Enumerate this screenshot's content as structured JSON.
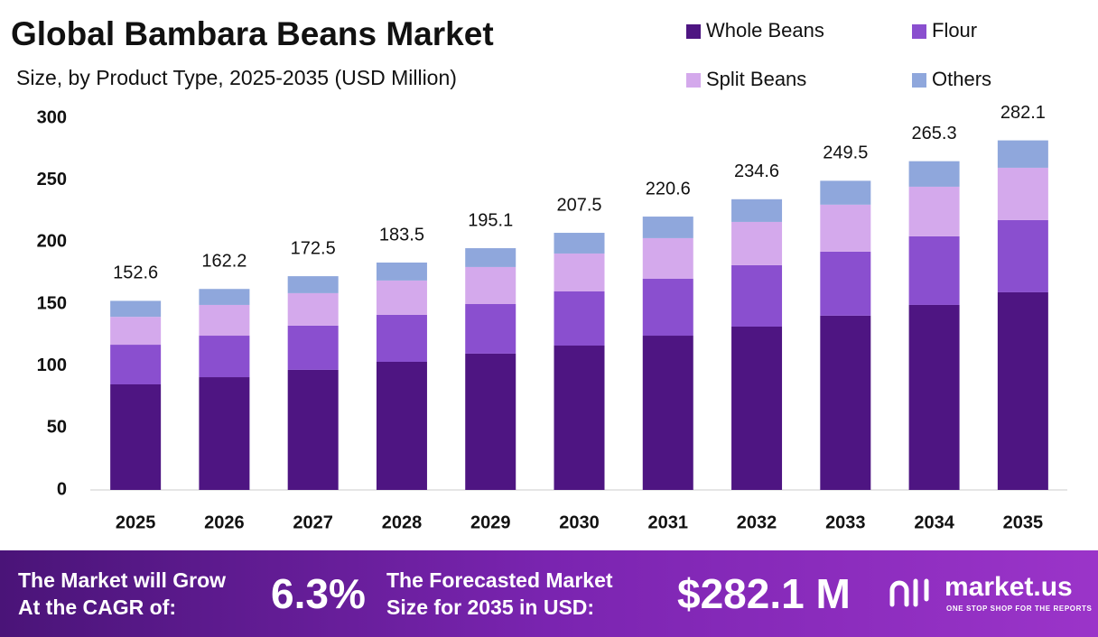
{
  "chart_data": {
    "type": "stacked_bar",
    "title": "Global Bambara Beans Market",
    "subtitle": "Size, by Product Type, 2025-2035 (USD Million)",
    "categories": [
      "2025",
      "2026",
      "2027",
      "2028",
      "2029",
      "2030",
      "2031",
      "2032",
      "2033",
      "2034",
      "2035"
    ],
    "series": [
      {
        "name": "Whole Beans",
        "color": "#4e1582",
        "values": [
          85.2,
          91.0,
          96.9,
          103.4,
          110.0,
          116.5,
          124.5,
          131.8,
          140.6,
          149.3,
          159.5
        ]
      },
      {
        "name": "Flour",
        "color": "#8a4fcf",
        "values": [
          32.0,
          33.5,
          35.7,
          37.9,
          40.0,
          43.7,
          45.9,
          49.6,
          51.7,
          55.4,
          58.3
        ]
      },
      {
        "name": "Split Beans",
        "color": "#d4a9ec",
        "values": [
          22.5,
          24.8,
          26.2,
          27.7,
          29.9,
          30.6,
          32.8,
          34.9,
          37.9,
          40.0,
          42.2
        ]
      },
      {
        "name": "Others",
        "color": "#8fa7dc",
        "values": [
          12.9,
          12.9,
          13.7,
          14.5,
          15.2,
          16.7,
          17.4,
          18.3,
          19.3,
          20.6,
          22.1
        ]
      }
    ],
    "totals": [
      152.6,
      162.2,
      172.5,
      183.5,
      195.1,
      207.5,
      220.6,
      234.6,
      249.5,
      265.3,
      282.1
    ],
    "ylim": [
      0,
      300
    ],
    "yticks": [
      0,
      50,
      100,
      150,
      200,
      250,
      300
    ],
    "grid": false,
    "legend": "top-right"
  },
  "footer": {
    "cagr_label": [
      "The Market will Grow",
      "At the CAGR of:"
    ],
    "cagr_value": "6.3%",
    "forecast_label": [
      "The Forecasted Market",
      "Size for 2035 in USD:"
    ],
    "forecast_value": "$282.1 M",
    "brand": "market.us",
    "tagline": "ONE STOP SHOP FOR THE REPORTS"
  }
}
